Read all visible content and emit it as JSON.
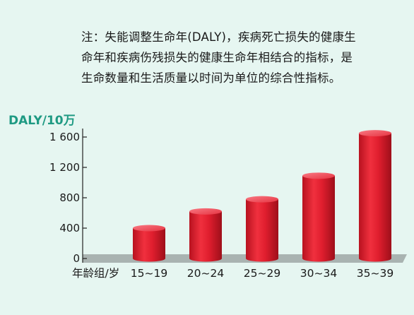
{
  "note": {
    "lines": [
      "注：失能调整生命年(DALY)，疾病死亡损失的健康生",
      "命年和疾病伤残损失的健康生命年相结合的指标，是",
      "生命数量和生活质量以时间为单位的综合性指标。"
    ]
  },
  "chart_data": {
    "type": "bar",
    "ylabel": "DALY/10万",
    "xlabel": "年龄组/岁",
    "categories": [
      "15~19",
      "20~24",
      "25~29",
      "30~34",
      "35~39"
    ],
    "values": [
      400,
      620,
      780,
      1090,
      1650
    ],
    "ylim": [
      0,
      1600
    ],
    "yticks": [
      0,
      400,
      800,
      1200,
      1600
    ],
    "ytick_labels": [
      "0",
      "400",
      "800",
      "1 200",
      "1 600"
    ],
    "grid": false,
    "legend": "none"
  },
  "colors": {
    "background": "#e6f6f1",
    "bar": "#e01e2e",
    "bar_dark": "#a8101c",
    "bar_light": "#f56470",
    "floor": "#a9b3b1",
    "axis_label": "#1f9a83"
  }
}
